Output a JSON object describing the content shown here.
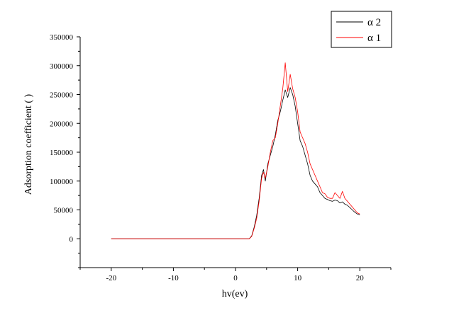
{
  "chart_data": {
    "type": "line",
    "title": "",
    "xlabel": "hv(ev)",
    "ylabel": "Adsorption coefficient ( )",
    "xlim": [
      -25,
      25
    ],
    "ylim": [
      -50000,
      350000
    ],
    "xticks": [
      -20,
      -10,
      0,
      10,
      20
    ],
    "yticks": [
      0,
      50000,
      100000,
      150000,
      200000,
      250000,
      300000,
      350000
    ],
    "xtick_labels": [
      "-20",
      "-10",
      "0",
      "10",
      "20"
    ],
    "ytick_labels": [
      "0",
      "50000",
      "100000",
      "150000",
      "200000",
      "250000",
      "300000",
      "350000"
    ],
    "grid": false,
    "legend_position": "top-right",
    "series": [
      {
        "name": "α  2",
        "color": "#000000",
        "x": [
          -20,
          2.2,
          2.6,
          3.0,
          3.4,
          3.8,
          4.2,
          4.5,
          4.8,
          5.2,
          5.6,
          6.0,
          6.4,
          6.8,
          7.2,
          7.6,
          8.0,
          8.4,
          8.8,
          9.2,
          9.6,
          10.0,
          10.4,
          10.8,
          11.2,
          11.6,
          12.0,
          12.4,
          12.8,
          13.2,
          13.6,
          14.0,
          14.4,
          14.8,
          15.2,
          15.6,
          16.0,
          16.4,
          16.8,
          17.2,
          17.6,
          18.0,
          18.4,
          18.8,
          19.2,
          19.6,
          20.0
        ],
        "y": [
          0,
          0,
          5000,
          20000,
          40000,
          70000,
          110000,
          120000,
          100000,
          130000,
          145000,
          160000,
          180000,
          205000,
          220000,
          240000,
          258000,
          245000,
          262000,
          250000,
          230000,
          200000,
          170000,
          160000,
          145000,
          130000,
          110000,
          100000,
          95000,
          90000,
          80000,
          75000,
          70000,
          68000,
          66000,
          65000,
          67000,
          66000,
          62000,
          64000,
          60000,
          58000,
          54000,
          50000,
          46000,
          43000,
          41000
        ]
      },
      {
        "name": "α  1",
        "color": "#ff0000",
        "x": [
          -20,
          2.2,
          2.6,
          3.0,
          3.4,
          3.8,
          4.2,
          4.5,
          4.8,
          5.2,
          5.6,
          6.0,
          6.4,
          6.8,
          7.2,
          7.6,
          8.0,
          8.4,
          8.8,
          9.2,
          9.6,
          10.0,
          10.4,
          10.8,
          11.2,
          11.6,
          12.0,
          12.4,
          12.8,
          13.2,
          13.6,
          14.0,
          14.4,
          14.8,
          15.2,
          15.6,
          16.0,
          16.4,
          16.8,
          17.2,
          17.6,
          18.0,
          18.4,
          18.8,
          19.2,
          19.6,
          20.0
        ],
        "y": [
          0,
          0,
          4000,
          18000,
          35000,
          65000,
          105000,
          115000,
          105000,
          125000,
          150000,
          170000,
          175000,
          200000,
          230000,
          260000,
          305000,
          255000,
          285000,
          260000,
          245000,
          220000,
          185000,
          175000,
          165000,
          150000,
          130000,
          120000,
          110000,
          100000,
          90000,
          80000,
          78000,
          72000,
          70000,
          70000,
          80000,
          75000,
          70000,
          82000,
          70000,
          65000,
          60000,
          55000,
          50000,
          45000,
          43000
        ]
      }
    ]
  }
}
